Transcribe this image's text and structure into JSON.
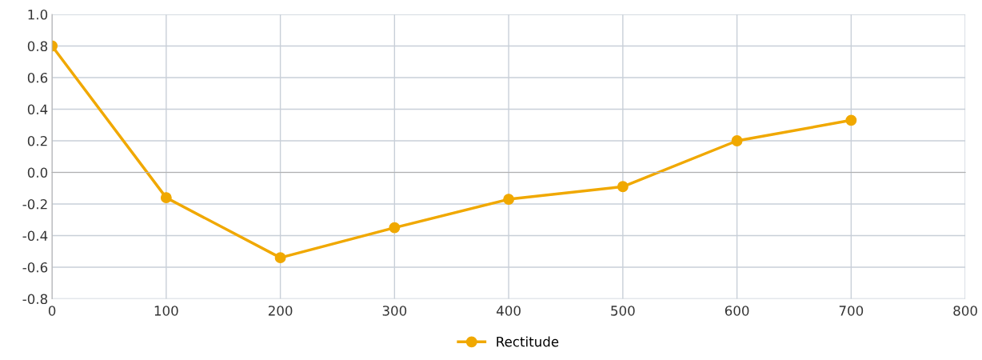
{
  "chart_data": {
    "type": "line",
    "x": [
      0,
      100,
      200,
      300,
      400,
      500,
      600,
      700
    ],
    "series": [
      {
        "name": "Rectitude",
        "color": "#f0a800",
        "values": [
          0.8,
          -0.16,
          -0.54,
          -0.35,
          -0.17,
          -0.09,
          0.2,
          0.33
        ]
      }
    ],
    "xlim": [
      0,
      800
    ],
    "xticks": [
      0,
      100,
      200,
      300,
      400,
      500,
      600,
      700,
      800
    ],
    "ylim": [
      -0.8,
      1.0
    ],
    "yticks": [
      {
        "value": -0.8,
        "label": "-0.8"
      },
      {
        "value": -0.6,
        "label": "-0.6"
      },
      {
        "value": -0.4,
        "label": "-0.4"
      },
      {
        "value": -0.2,
        "label": "-0.2"
      },
      {
        "value": 0.0,
        "label": "0.0"
      },
      {
        "value": 0.2,
        "label": "0.2"
      },
      {
        "value": 0.4,
        "label": "0.4"
      },
      {
        "value": 0.6,
        "label": "0.6"
      },
      {
        "value": 0.8,
        "label": "0.8"
      },
      {
        "value": 1.0,
        "label": "1.0"
      }
    ],
    "grid": true,
    "legend": "bottom",
    "marker": "circle",
    "line_style": "solid"
  }
}
